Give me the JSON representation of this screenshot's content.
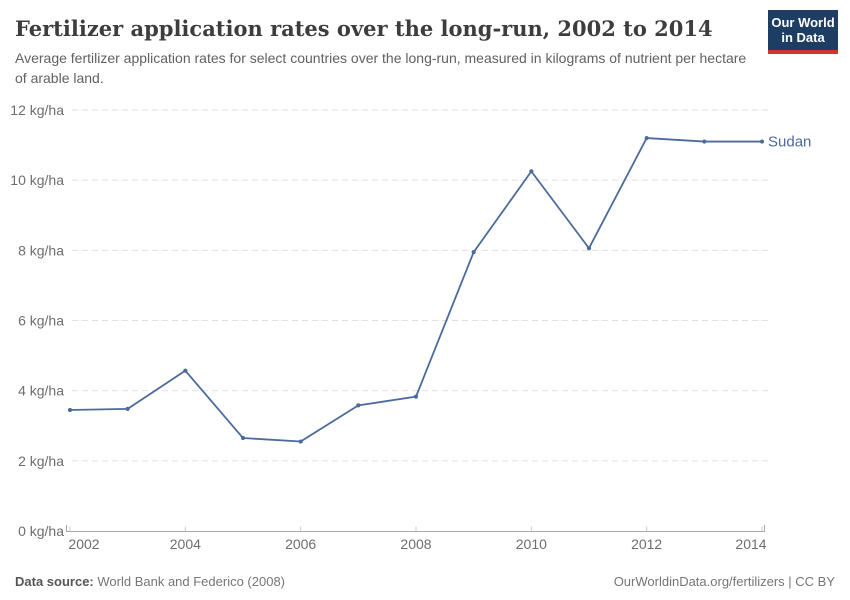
{
  "header": {
    "title": "Fertilizer application rates over the long-run, 2002 to 2014",
    "subtitle": "Average fertilizer application rates for select countries over the long-run, measured in kilograms of nutrient per hectare of arable land.",
    "logo_line1": "Our World",
    "logo_line2": "in Data"
  },
  "chart_data": {
    "type": "line",
    "title": "Fertilizer application rates over the long-run, 2002 to 2014",
    "x": [
      2002,
      2003,
      2004,
      2005,
      2006,
      2007,
      2008,
      2009,
      2010,
      2011,
      2012,
      2013,
      2014
    ],
    "series": [
      {
        "name": "Sudan",
        "color": "#4c6a9c",
        "values": [
          3.45,
          3.48,
          4.57,
          2.65,
          2.55,
          3.58,
          3.83,
          7.95,
          10.25,
          8.06,
          11.2,
          11.1,
          11.1
        ]
      }
    ],
    "xlim": [
      2002,
      2014
    ],
    "ylim": [
      0,
      12
    ],
    "xticks": [
      2002,
      2004,
      2006,
      2008,
      2010,
      2012,
      2014
    ],
    "yticks": [
      0,
      2,
      4,
      6,
      8,
      10,
      12
    ],
    "ytick_suffix": " kg/ha",
    "grid": "horizontal-dashed",
    "legend_position": "series-end-label"
  },
  "footer": {
    "datasource_label": "Data source:",
    "datasource_value": "World Bank and Federico (2008)",
    "credit": "OurWorldinData.org/fertilizers | CC BY"
  },
  "colors": {
    "series_blue": "#4c6a9c",
    "logo_navy": "#1d3d63",
    "logo_red": "#d0342c",
    "gridline": "#e0e0e0",
    "axis_line": "#a8a8a8",
    "axis_tick": "#c9c9c9",
    "axis_text": "#6e6e6e"
  }
}
